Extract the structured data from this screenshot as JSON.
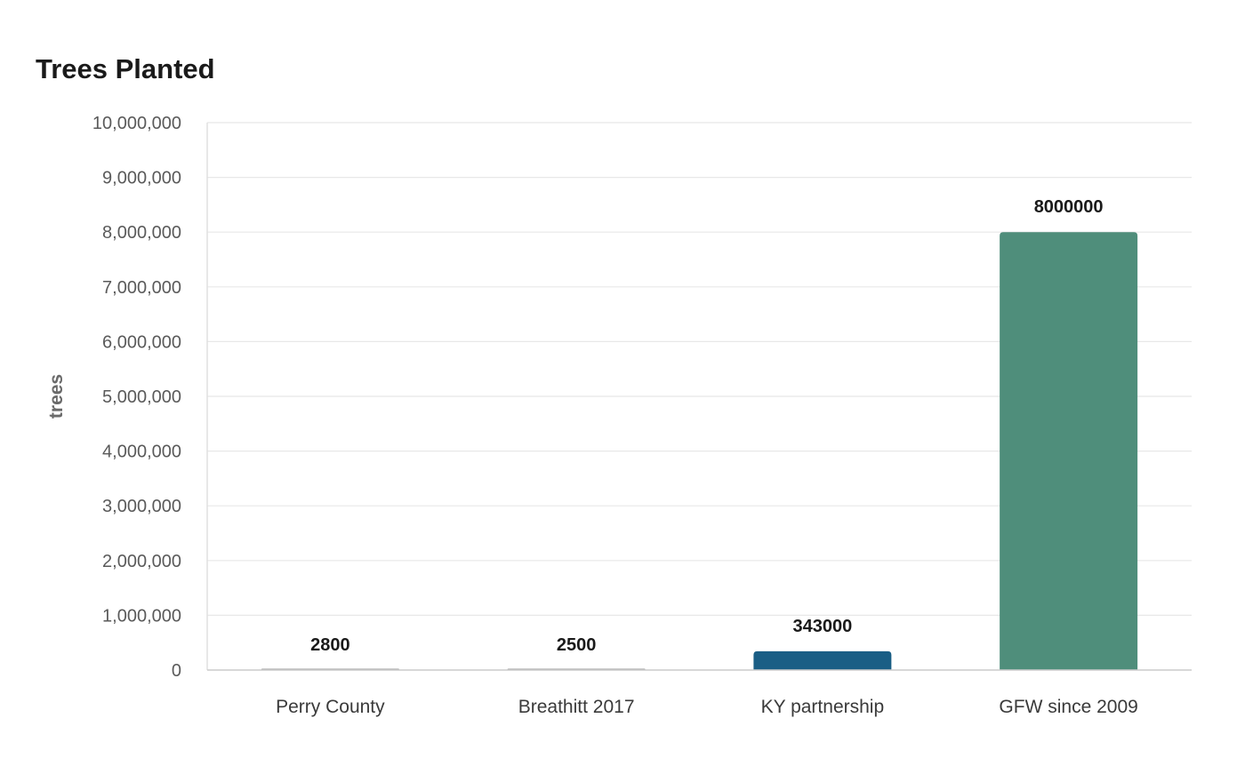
{
  "chart_data": {
    "type": "bar",
    "title": "Trees Planted",
    "xlabel": "",
    "ylabel": "trees",
    "categories": [
      "Perry County",
      "Breathitt 2017",
      "KY partnership",
      "GFW since 2009"
    ],
    "values": [
      2800,
      2500,
      343000,
      8000000
    ],
    "data_labels": [
      "2800",
      "2500",
      "343000",
      "8000000"
    ],
    "colors": [
      "#9e9e9e",
      "#9e9e9e",
      "#1a5e85",
      "#4f8e7b"
    ],
    "ylim": [
      0,
      10000000
    ],
    "yticks": [
      0,
      1000000,
      2000000,
      3000000,
      4000000,
      5000000,
      6000000,
      7000000,
      8000000,
      9000000,
      10000000
    ],
    "ytick_labels": [
      "0",
      "1,000,000",
      "2,000,000",
      "3,000,000",
      "4,000,000",
      "5,000,000",
      "6,000,000",
      "7,000,000",
      "8,000,000",
      "9,000,000",
      "10,000,000"
    ],
    "grid": true,
    "legend": "none"
  }
}
